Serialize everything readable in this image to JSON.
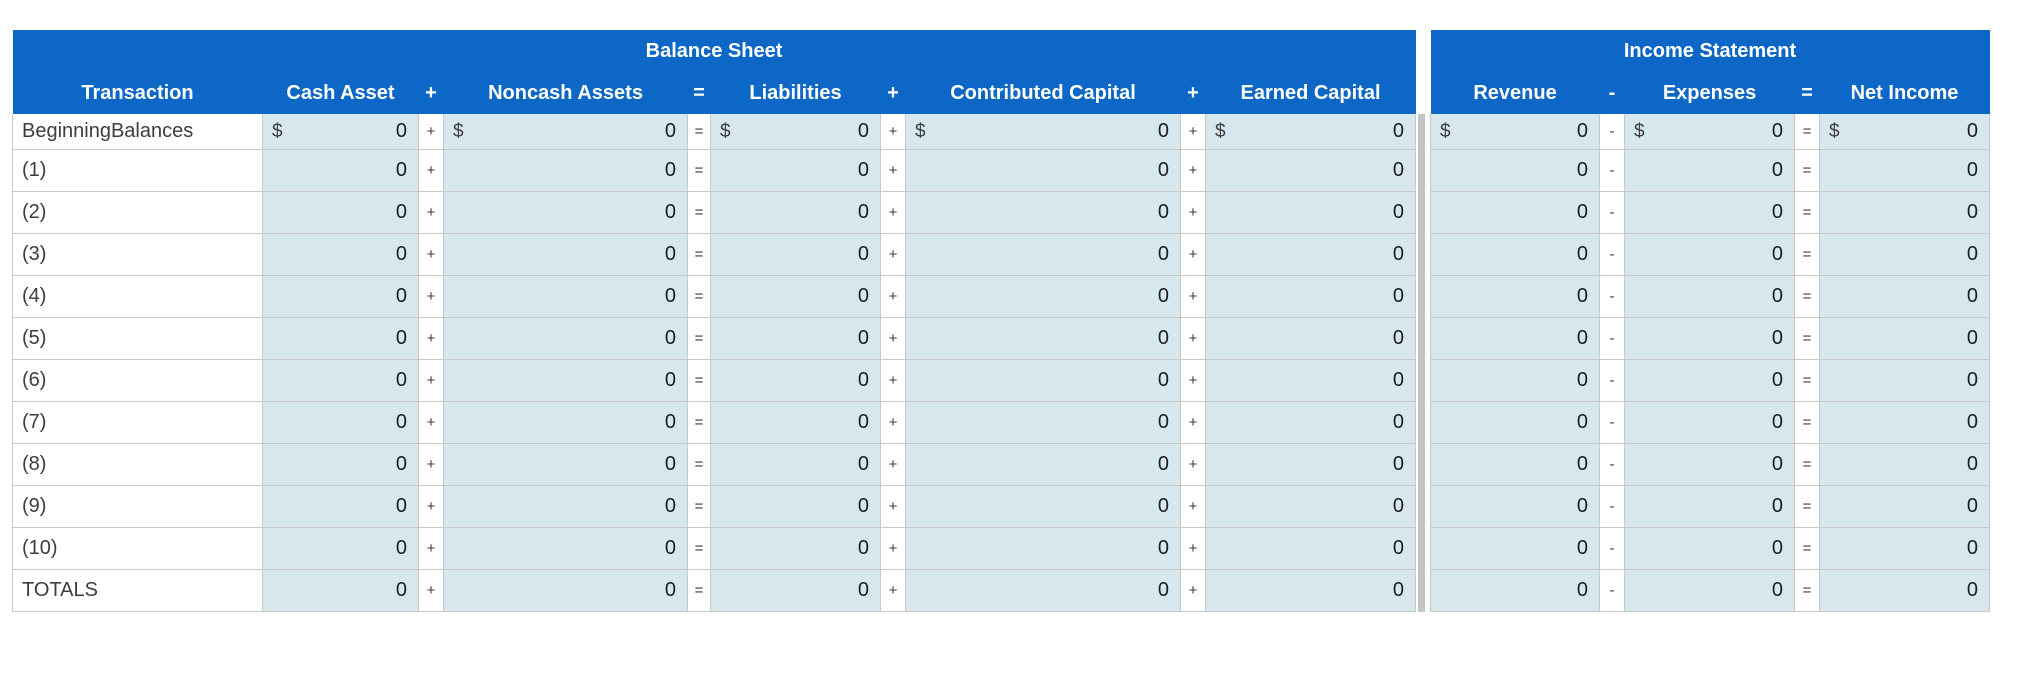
{
  "colors": {
    "header_blue": "#0d67c6",
    "cell_light_blue": "#d6e8ee",
    "grid_border_gray": "#c9c9c9",
    "section_divider_gray": "#c4c4c4",
    "header_text": "#ffffff",
    "body_text": "#1e1e1e",
    "label_text": "#3d3d3d"
  },
  "balance_sheet": {
    "title": "Balance Sheet",
    "columns": [
      "Transaction",
      "Cash Asset",
      "+",
      "Noncash Assets",
      "=",
      "Liabilities",
      "+",
      "Contributed Capital",
      "+",
      "Earned Capital"
    ],
    "operators": [
      "+",
      "=",
      "+",
      "+"
    ]
  },
  "income_statement": {
    "title": "Income Statement",
    "columns": [
      "Revenue",
      "-",
      "Expenses",
      "=",
      "Net Income"
    ],
    "operators": [
      "-",
      "="
    ]
  },
  "rows": [
    {
      "label": "BeginningBalances",
      "currency_prefix": "$",
      "cash_asset": "0",
      "noncash_assets": "0",
      "liabilities": "0",
      "contributed_capital": "0",
      "earned_capital": "0",
      "revenue": "0",
      "expenses": "0",
      "net_income": "0"
    },
    {
      "label": "(1)",
      "cash_asset": "0",
      "noncash_assets": "0",
      "liabilities": "0",
      "contributed_capital": "0",
      "earned_capital": "0",
      "revenue": "0",
      "expenses": "0",
      "net_income": "0"
    },
    {
      "label": "(2)",
      "cash_asset": "0",
      "noncash_assets": "0",
      "liabilities": "0",
      "contributed_capital": "0",
      "earned_capital": "0",
      "revenue": "0",
      "expenses": "0",
      "net_income": "0"
    },
    {
      "label": "(3)",
      "cash_asset": "0",
      "noncash_assets": "0",
      "liabilities": "0",
      "contributed_capital": "0",
      "earned_capital": "0",
      "revenue": "0",
      "expenses": "0",
      "net_income": "0"
    },
    {
      "label": "(4)",
      "cash_asset": "0",
      "noncash_assets": "0",
      "liabilities": "0",
      "contributed_capital": "0",
      "earned_capital": "0",
      "revenue": "0",
      "expenses": "0",
      "net_income": "0"
    },
    {
      "label": "(5)",
      "cash_asset": "0",
      "noncash_assets": "0",
      "liabilities": "0",
      "contributed_capital": "0",
      "earned_capital": "0",
      "revenue": "0",
      "expenses": "0",
      "net_income": "0"
    },
    {
      "label": "(6)",
      "cash_asset": "0",
      "noncash_assets": "0",
      "liabilities": "0",
      "contributed_capital": "0",
      "earned_capital": "0",
      "revenue": "0",
      "expenses": "0",
      "net_income": "0"
    },
    {
      "label": "(7)",
      "cash_asset": "0",
      "noncash_assets": "0",
      "liabilities": "0",
      "contributed_capital": "0",
      "earned_capital": "0",
      "revenue": "0",
      "expenses": "0",
      "net_income": "0"
    },
    {
      "label": "(8)",
      "cash_asset": "0",
      "noncash_assets": "0",
      "liabilities": "0",
      "contributed_capital": "0",
      "earned_capital": "0",
      "revenue": "0",
      "expenses": "0",
      "net_income": "0"
    },
    {
      "label": "(9)",
      "cash_asset": "0",
      "noncash_assets": "0",
      "liabilities": "0",
      "contributed_capital": "0",
      "earned_capital": "0",
      "revenue": "0",
      "expenses": "0",
      "net_income": "0"
    },
    {
      "label": "(10)",
      "cash_asset": "0",
      "noncash_assets": "0",
      "liabilities": "0",
      "contributed_capital": "0",
      "earned_capital": "0",
      "revenue": "0",
      "expenses": "0",
      "net_income": "0"
    },
    {
      "label": "TOTALS",
      "cash_asset": "0",
      "noncash_assets": "0",
      "liabilities": "0",
      "contributed_capital": "0",
      "earned_capital": "0",
      "revenue": "0",
      "expenses": "0",
      "net_income": "0"
    }
  ]
}
